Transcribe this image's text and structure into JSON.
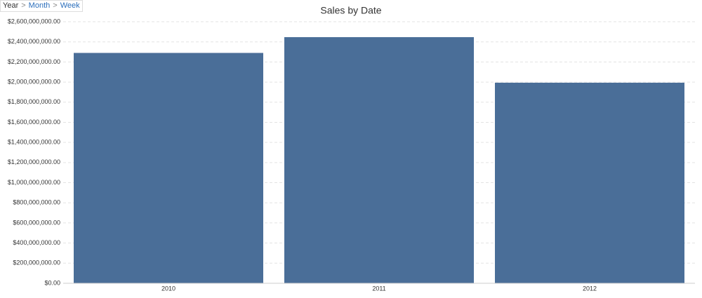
{
  "breadcrumb": [
    "Year",
    "Month",
    "Week"
  ],
  "chart_data": {
    "type": "bar",
    "title": "Sales by Date",
    "categories": [
      "2010",
      "2011",
      "2012"
    ],
    "values": [
      2290000000,
      2447000000,
      1994000000
    ],
    "color": "#4a6e98",
    "ylim": [
      0,
      2600000000
    ],
    "yticks": [
      {
        "value": 0,
        "label": "$0.00"
      },
      {
        "value": 200000000,
        "label": "$200,000,000.00"
      },
      {
        "value": 400000000,
        "label": "$400,000,000.00"
      },
      {
        "value": 600000000,
        "label": "$600,000,000.00"
      },
      {
        "value": 800000000,
        "label": "$800,000,000.00"
      },
      {
        "value": 1000000000,
        "label": "$1,000,000,000.00"
      },
      {
        "value": 1200000000,
        "label": "$1,200,000,000.00"
      },
      {
        "value": 1400000000,
        "label": "$1,400,000,000.00"
      },
      {
        "value": 1600000000,
        "label": "$1,600,000,000.00"
      },
      {
        "value": 1800000000,
        "label": "$1,800,000,000.00"
      },
      {
        "value": 2000000000,
        "label": "$2,000,000,000.00"
      },
      {
        "value": 2200000000,
        "label": "$2,200,000,000.00"
      },
      {
        "value": 2400000000,
        "label": "$2,400,000,000.00"
      },
      {
        "value": 2600000000,
        "label": "$2,600,000,000.00"
      }
    ],
    "grid": true
  }
}
